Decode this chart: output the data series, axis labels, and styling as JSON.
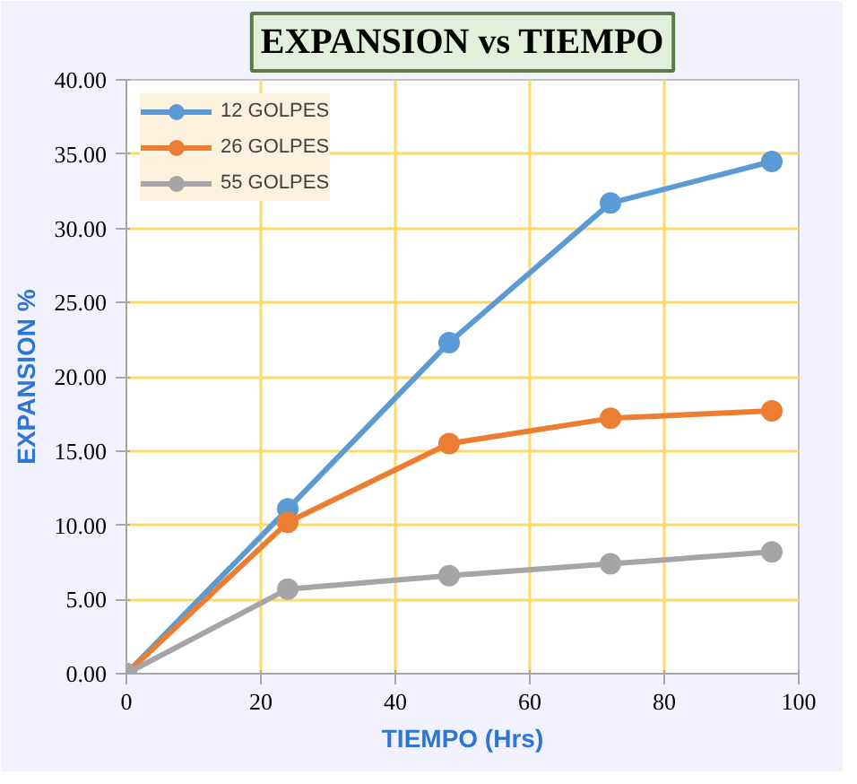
{
  "chart_data": {
    "type": "line",
    "title": "EXPANSION vs TIEMPO",
    "xlabel": "TIEMPO (Hrs)",
    "ylabel": "EXPANSION %",
    "x": [
      0,
      24,
      48,
      72,
      96
    ],
    "series": [
      {
        "name": "12 GOLPES",
        "color": "#5b9bd5",
        "values": [
          0,
          11.1,
          22.3,
          31.7,
          34.5
        ]
      },
      {
        "name": "26 GOLPES",
        "color": "#ed7d31",
        "values": [
          0,
          10.2,
          15.5,
          17.2,
          17.7
        ]
      },
      {
        "name": "55 GOLPES",
        "color": "#a5a5a5",
        "values": [
          0,
          5.7,
          6.6,
          7.4,
          8.2
        ]
      }
    ],
    "xlim": [
      0,
      100
    ],
    "xticks": [
      0,
      20,
      40,
      60,
      80,
      100
    ],
    "ylim": [
      0,
      40
    ],
    "yticks": [
      {
        "value": 0,
        "label": "0.00"
      },
      {
        "value": 5,
        "label": "5.00"
      },
      {
        "value": 10,
        "label": "10.00"
      },
      {
        "value": 15,
        "label": "15.00"
      },
      {
        "value": 20,
        "label": "20.00"
      },
      {
        "value": 25,
        "label": "25.00"
      },
      {
        "value": 30,
        "label": "30.00"
      },
      {
        "value": 35,
        "label": "35.00"
      },
      {
        "value": 40,
        "label": "40.00"
      }
    ],
    "grid": true,
    "legend": "top left",
    "marker": "circle",
    "line_style": "solid"
  }
}
